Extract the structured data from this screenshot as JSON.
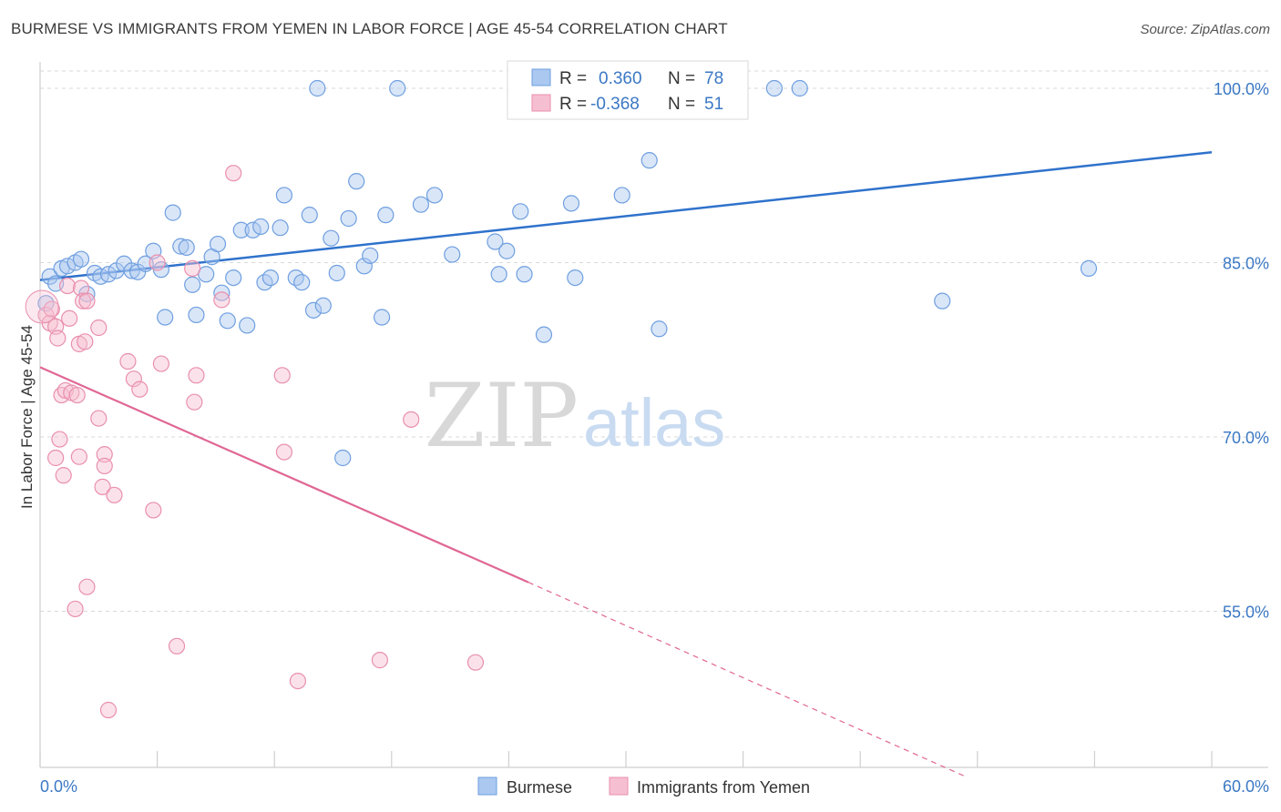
{
  "header": {
    "title": "BURMESE VS IMMIGRANTS FROM YEMEN IN LABOR FORCE | AGE 45-54 CORRELATION CHART",
    "source": "Source: ZipAtlas.com"
  },
  "watermark": {
    "zip": "ZIP",
    "atlas": "atlas"
  },
  "colors": {
    "blue": "#6f9fe0",
    "blue_fill": "#aac8f0",
    "blue_line": "#2f72cc",
    "pink": "#e98fae",
    "pink_fill": "#f6bfd1",
    "pink_line": "#e06694",
    "axis_text": "#3b78c4",
    "grid": "#d9d9d9"
  },
  "legend": {
    "rows": [
      {
        "r_label": "R =",
        "r_value": "0.360",
        "n_label": "N =",
        "n_value": "78",
        "series": "blue"
      },
      {
        "r_label": "R =",
        "r_value": "-0.368",
        "n_label": "N =",
        "n_value": "51",
        "series": "pink"
      }
    ]
  },
  "chart_data": {
    "type": "scatter",
    "xlabel": "",
    "ylabel": "In Labor Force | Age 45-54",
    "xlim": [
      0,
      60
    ],
    "ylim": [
      40,
      102
    ],
    "x_ticks_labeled": [
      "0.0%",
      "60.0%"
    ],
    "y_ticks": [
      100,
      85,
      70,
      55
    ],
    "y_tick_labels": [
      "100.0%",
      "85.0%",
      "70.0%",
      "55.0%"
    ],
    "grid": true,
    "legend_position": "top-center",
    "bottom_legend": [
      "Burmese",
      "Immigrants from Yemen"
    ],
    "series": [
      {
        "name": "Burmese",
        "color": "blue",
        "trend": {
          "x": [
            0,
            60
          ],
          "y": [
            83.5,
            94.5
          ],
          "dashed_from": null
        },
        "points": [
          [
            0.3,
            81.5
          ],
          [
            0.5,
            83.8
          ],
          [
            0.8,
            83.2
          ],
          [
            1.1,
            84.5
          ],
          [
            1.4,
            84.7
          ],
          [
            1.8,
            85.0
          ],
          [
            2.1,
            85.3
          ],
          [
            2.4,
            82.3
          ],
          [
            2.8,
            84.1
          ],
          [
            3.1,
            83.8
          ],
          [
            3.5,
            84.0
          ],
          [
            3.9,
            84.3
          ],
          [
            4.3,
            84.9
          ],
          [
            4.7,
            84.3
          ],
          [
            5.0,
            84.2
          ],
          [
            5.4,
            84.9
          ],
          [
            5.8,
            86.0
          ],
          [
            6.2,
            84.4
          ],
          [
            6.4,
            80.3
          ],
          [
            6.8,
            89.3
          ],
          [
            7.2,
            86.4
          ],
          [
            7.5,
            86.3
          ],
          [
            7.8,
            83.1
          ],
          [
            8.0,
            80.5
          ],
          [
            8.5,
            84.0
          ],
          [
            8.8,
            85.5
          ],
          [
            9.1,
            86.6
          ],
          [
            9.3,
            82.4
          ],
          [
            9.6,
            80.0
          ],
          [
            9.9,
            83.7
          ],
          [
            10.3,
            87.8
          ],
          [
            10.6,
            79.6
          ],
          [
            10.9,
            87.8
          ],
          [
            11.3,
            88.1
          ],
          [
            11.5,
            83.3
          ],
          [
            11.8,
            83.7
          ],
          [
            12.3,
            88.0
          ],
          [
            12.5,
            90.8
          ],
          [
            13.1,
            83.7
          ],
          [
            13.4,
            83.3
          ],
          [
            13.8,
            89.1
          ],
          [
            14.0,
            80.9
          ],
          [
            14.2,
            100.0
          ],
          [
            14.5,
            81.3
          ],
          [
            14.9,
            87.1
          ],
          [
            15.2,
            84.1
          ],
          [
            15.5,
            68.2
          ],
          [
            15.8,
            88.8
          ],
          [
            16.2,
            92.0
          ],
          [
            16.6,
            84.7
          ],
          [
            16.9,
            85.6
          ],
          [
            17.5,
            80.3
          ],
          [
            17.7,
            89.1
          ],
          [
            18.3,
            100.0
          ],
          [
            19.5,
            90.0
          ],
          [
            20.2,
            90.8
          ],
          [
            21.1,
            85.7
          ],
          [
            23.3,
            86.8
          ],
          [
            23.5,
            84.0
          ],
          [
            23.9,
            86.0
          ],
          [
            24.4,
            100.0
          ],
          [
            24.6,
            89.4
          ],
          [
            24.8,
            84.0
          ],
          [
            25.8,
            78.8
          ],
          [
            26.8,
            100.0
          ],
          [
            27.2,
            90.1
          ],
          [
            27.4,
            83.7
          ],
          [
            29.5,
            100.0
          ],
          [
            29.8,
            90.8
          ],
          [
            31.2,
            93.8
          ],
          [
            31.7,
            79.3
          ],
          [
            37.6,
            100.0
          ],
          [
            38.9,
            100.0
          ],
          [
            46.2,
            81.7
          ],
          [
            53.7,
            84.5
          ]
        ]
      },
      {
        "name": "Immigrants from Yemen",
        "color": "pink",
        "trend": {
          "x": [
            0,
            25
          ],
          "y": [
            76.0,
            57.5
          ],
          "dashed_to": [
            47.5,
            40.7
          ]
        },
        "points": [
          [
            0.3,
            80.5
          ],
          [
            0.5,
            79.8
          ],
          [
            0.6,
            81.0
          ],
          [
            0.8,
            68.2
          ],
          [
            0.8,
            79.5
          ],
          [
            0.9,
            78.5
          ],
          [
            1.0,
            69.8
          ],
          [
            1.1,
            73.6
          ],
          [
            1.2,
            66.7
          ],
          [
            1.3,
            74.0
          ],
          [
            1.4,
            83.0
          ],
          [
            1.5,
            80.2
          ],
          [
            1.6,
            73.8
          ],
          [
            1.8,
            55.2
          ],
          [
            1.9,
            73.6
          ],
          [
            2.0,
            78.0
          ],
          [
            2.0,
            68.3
          ],
          [
            2.1,
            82.8
          ],
          [
            2.2,
            81.7
          ],
          [
            2.3,
            78.2
          ],
          [
            2.4,
            57.1
          ],
          [
            2.4,
            81.7
          ],
          [
            3.0,
            71.6
          ],
          [
            3.0,
            79.4
          ],
          [
            3.2,
            65.7
          ],
          [
            3.3,
            68.5
          ],
          [
            3.3,
            67.5
          ],
          [
            3.5,
            46.5
          ],
          [
            3.8,
            65.0
          ],
          [
            4.5,
            76.5
          ],
          [
            4.8,
            75.0
          ],
          [
            5.1,
            74.1
          ],
          [
            5.8,
            63.7
          ],
          [
            6.0,
            85.0
          ],
          [
            6.2,
            76.3
          ],
          [
            7.0,
            52.0
          ],
          [
            7.8,
            84.5
          ],
          [
            7.9,
            73.0
          ],
          [
            8.0,
            75.3
          ],
          [
            9.3,
            81.8
          ],
          [
            9.9,
            92.7
          ],
          [
            12.4,
            75.3
          ],
          [
            12.5,
            68.7
          ],
          [
            13.2,
            49.0
          ],
          [
            17.4,
            50.8
          ],
          [
            19.0,
            71.5
          ],
          [
            22.3,
            50.6
          ]
        ]
      }
    ]
  }
}
